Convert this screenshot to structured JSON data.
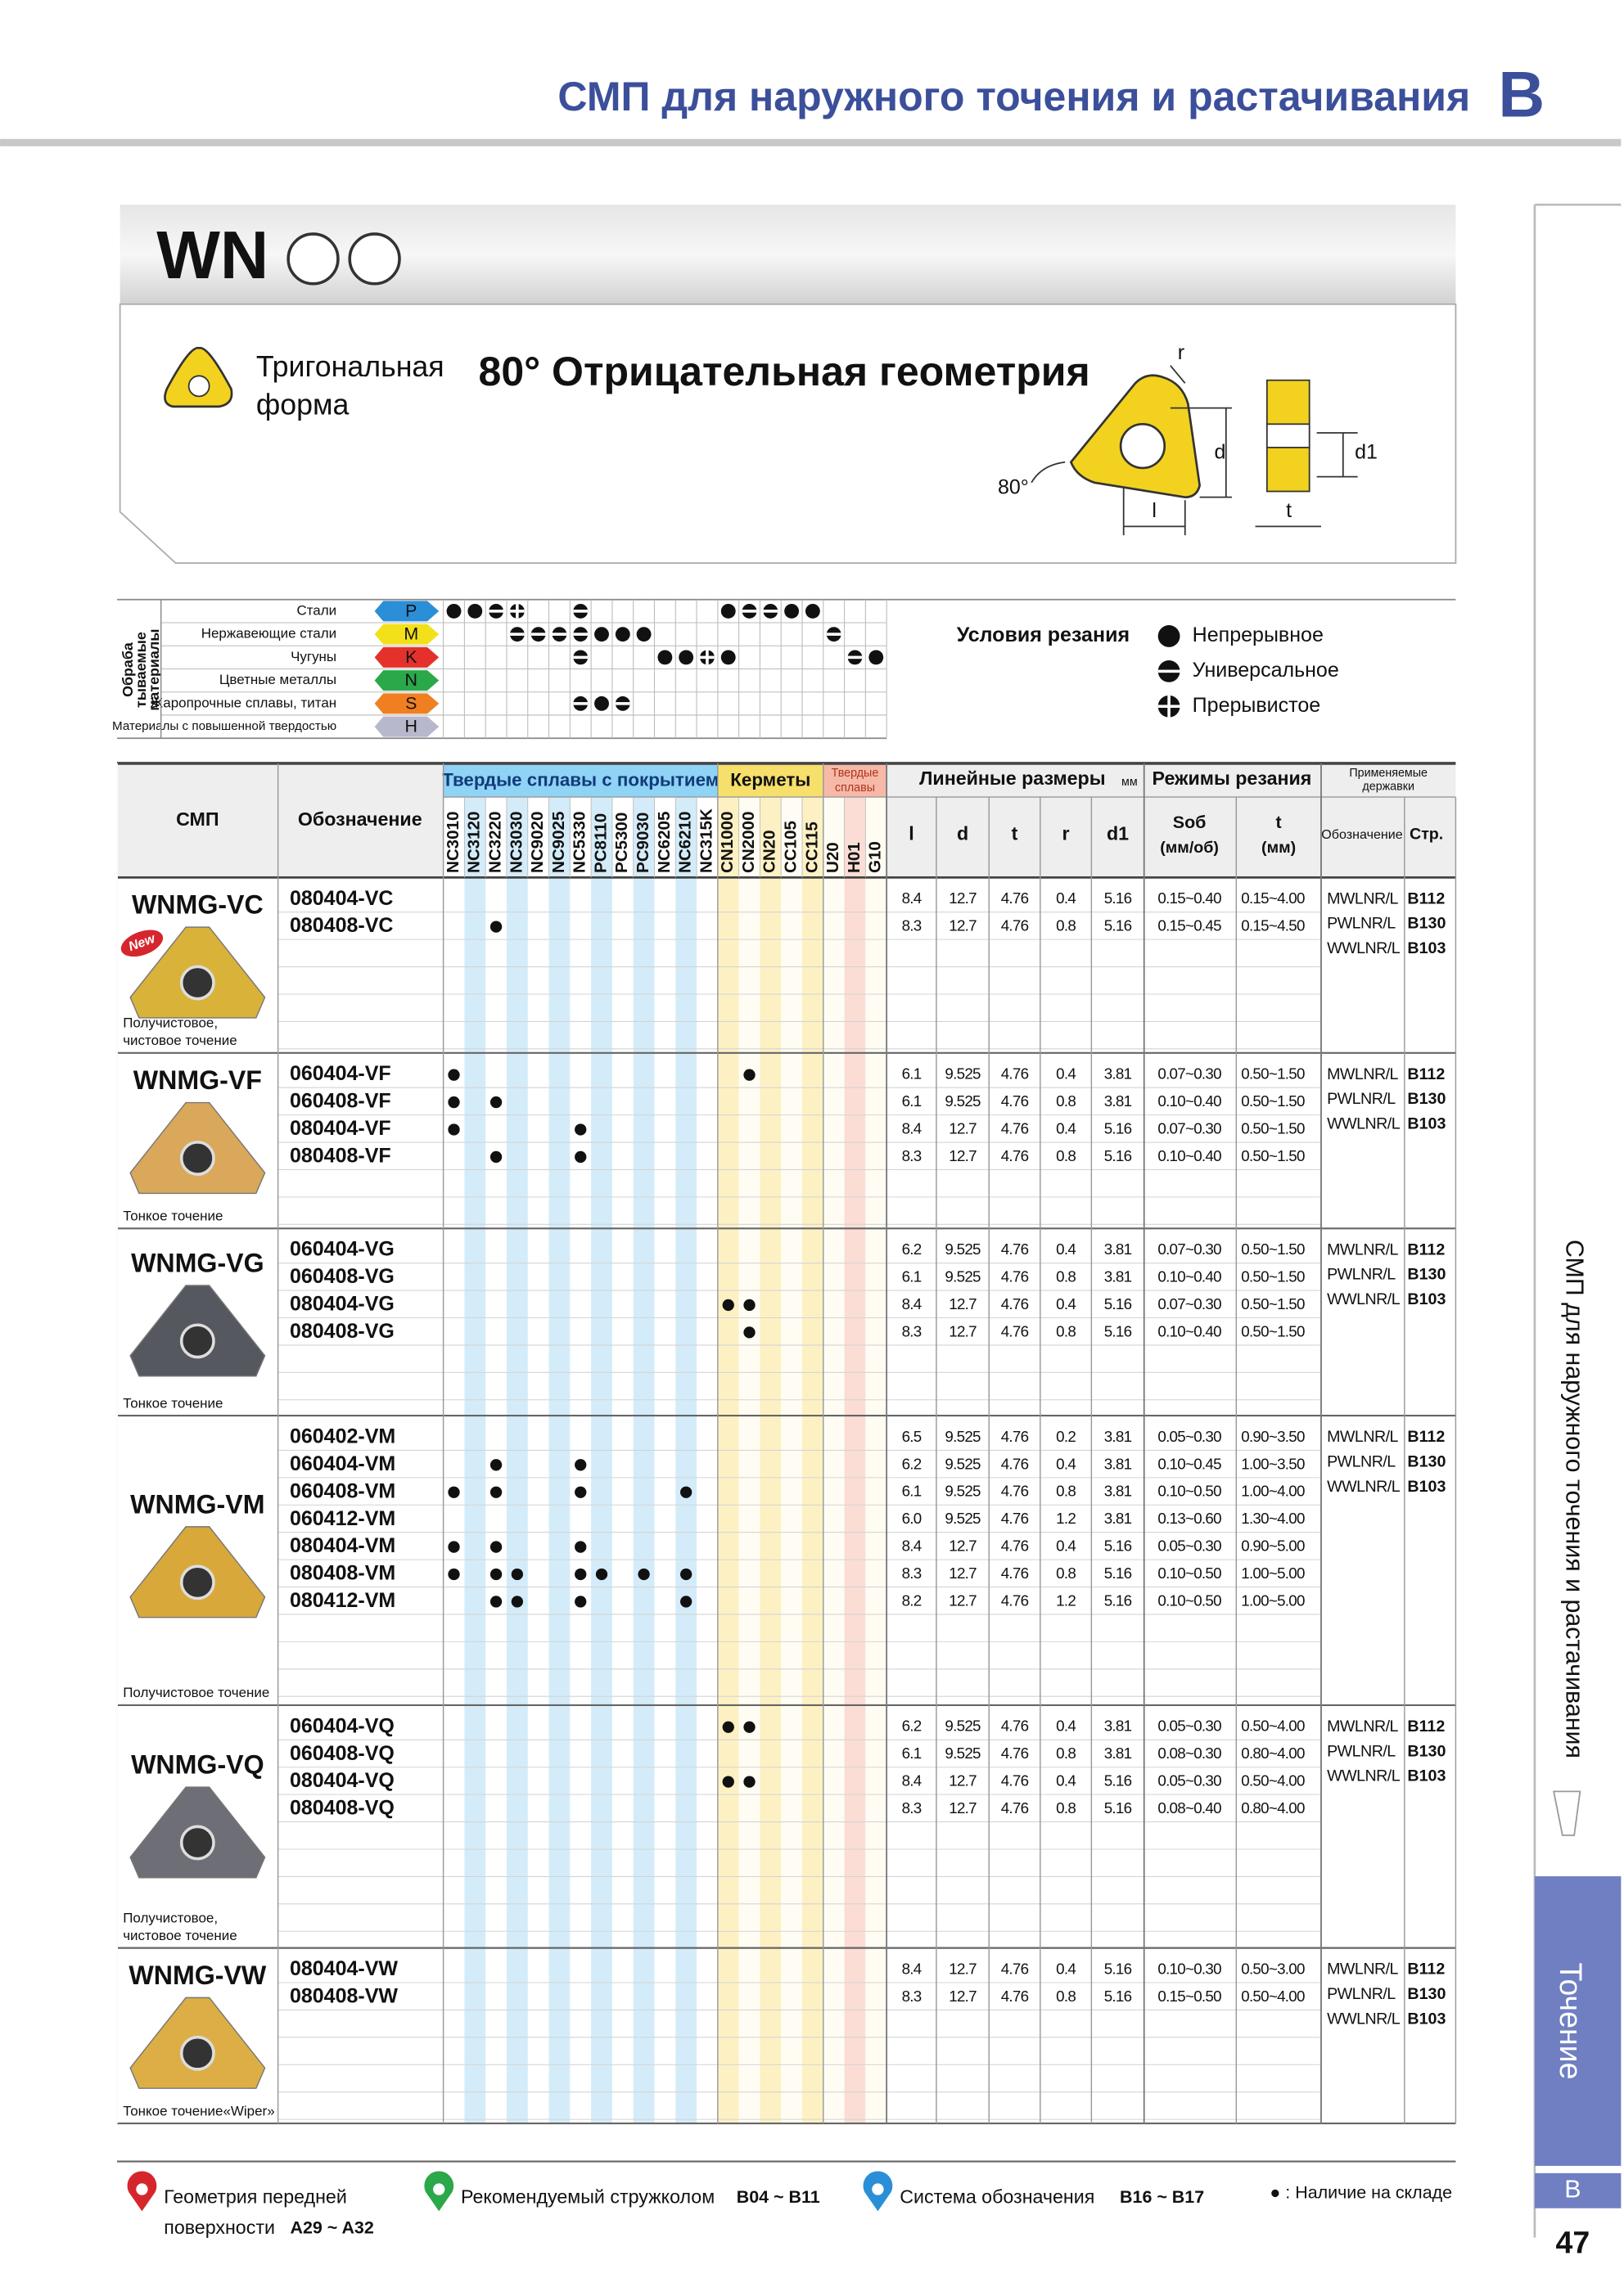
{
  "header": {
    "title": "СМП для наружного точения и растачивания",
    "letter": "B"
  },
  "product": {
    "code": "WN",
    "shape": [
      "Тригональная",
      "форма"
    ],
    "geometry": "80° Отрицательная геометрия",
    "diagram": {
      "r": "r",
      "d": "d",
      "d1": "d1",
      "angle": "80°",
      "l": "l",
      "t": "t"
    }
  },
  "materials": {
    "heading": [
      "Обраба",
      "тываемые",
      "материалы"
    ],
    "rows": [
      {
        "name": "Стали",
        "letter": "P",
        "color": "#2a8fd6"
      },
      {
        "name": "Нержавеющие стали",
        "letter": "M",
        "color": "#f2e01a"
      },
      {
        "name": "Чугуны",
        "letter": "K",
        "color": "#e4312b"
      },
      {
        "name": "Цветные металлы",
        "letter": "N",
        "color": "#2aa84a"
      },
      {
        "name": "Жаропрочные сплавы, титан",
        "letter": "S",
        "color": "#f07f22"
      },
      {
        "name": "Материалы с повышенной твердостью",
        "letter": "H",
        "color": "#b8b8cc"
      }
    ],
    "marks": [
      [
        [
          "NC3010",
          "c"
        ],
        [
          "NC3120",
          "c"
        ],
        [
          "NC3220",
          "u"
        ],
        [
          "NC3030",
          "i"
        ],
        [
          "NC5330",
          "u"
        ],
        [
          "CN1000",
          "c"
        ],
        [
          "CN2000",
          "u"
        ],
        [
          "CN20",
          "u"
        ],
        [
          "CC105",
          "c"
        ],
        [
          "CC115",
          "c"
        ]
      ],
      [
        [
          "NC3030",
          "u"
        ],
        [
          "NC9020",
          "u"
        ],
        [
          "NC9025",
          "u"
        ],
        [
          "NC5330",
          "u"
        ],
        [
          "PC8110",
          "c"
        ],
        [
          "PC5300",
          "c"
        ],
        [
          "PC9030",
          "c"
        ],
        [
          "U20",
          "u"
        ]
      ],
      [
        [
          "NC5330",
          "u"
        ],
        [
          "NC6205",
          "c"
        ],
        [
          "NC6210",
          "c"
        ],
        [
          "NC315K",
          "i"
        ],
        [
          "CN1000",
          "c"
        ],
        [
          "H01",
          "u"
        ],
        [
          "G10",
          "c"
        ]
      ],
      [],
      [
        [
          "NC5330",
          "u"
        ],
        [
          "PC8110",
          "c"
        ],
        [
          "PC5300",
          "u"
        ]
      ],
      []
    ]
  },
  "conditions": {
    "title": "Условия резания",
    "items": [
      "Непрерывное",
      "Универсальное",
      "Прерывистое"
    ]
  },
  "table": {
    "head": {
      "insert": "СМП",
      "designation": "Обозначение",
      "coated": "Твердые сплавы с покрытием",
      "cermets": "Керметы",
      "carbide": [
        "Твердые",
        "сплавы"
      ],
      "linear": "Линейные размеры",
      "unit": "мм",
      "modes": "Режимы резания",
      "holders": [
        "Применяемые",
        "державки"
      ],
      "dims": [
        "l",
        "d",
        "t",
        "r",
        "d1"
      ],
      "feed": [
        "Sоб",
        "(мм/об)"
      ],
      "depth": [
        "t",
        "(мм)"
      ],
      "holder_code": "Обозначение",
      "holder_page": "Стр."
    },
    "grades": [
      "NC3010",
      "NC3120",
      "NC3220",
      "NC3030",
      "NC9020",
      "NC9025",
      "NC5330",
      "PC8110",
      "PC5300",
      "PC9030",
      "NC6205",
      "NC6210",
      "NC315K",
      "CN1000",
      "CN2000",
      "CN20",
      "CC105",
      "CC115",
      "U20",
      "H01",
      "G10"
    ],
    "groups": [
      {
        "name": "WNMG-VC",
        "badge": "New",
        "note": [
          "Получистовое,",
          "чистовое точение"
        ],
        "color": "#d9b23a",
        "items": [
          {
            "code": "080404-VC",
            "grades": [],
            "dims": [
              "8.4",
              "12.7",
              "4.76",
              "0.4",
              "5.16"
            ],
            "feed": "0.15~0.40",
            "depth": "0.15~4.00"
          },
          {
            "code": "080408-VC",
            "grades": [
              "NC3220"
            ],
            "dims": [
              "8.3",
              "12.7",
              "4.76",
              "0.8",
              "5.16"
            ],
            "feed": "0.15~0.45",
            "depth": "0.15~4.50"
          }
        ],
        "holders": [
          [
            "MWLNR/L",
            "B112"
          ],
          [
            "PWLNR/L",
            "B130"
          ],
          [
            "WWLNR/L",
            "B103"
          ]
        ]
      },
      {
        "name": "WNMG-VF",
        "note": [
          "Тонкое точение"
        ],
        "color": "#d9a85a",
        "items": [
          {
            "code": "060404-VF",
            "grades": [
              "NC3010",
              "CN2000"
            ],
            "dims": [
              "6.1",
              "9.525",
              "4.76",
              "0.4",
              "3.81"
            ],
            "feed": "0.07~0.30",
            "depth": "0.50~1.50"
          },
          {
            "code": "060408-VF",
            "grades": [
              "NC3010",
              "NC3220"
            ],
            "dims": [
              "6.1",
              "9.525",
              "4.76",
              "0.8",
              "3.81"
            ],
            "feed": "0.10~0.40",
            "depth": "0.50~1.50"
          },
          {
            "code": "080404-VF",
            "grades": [
              "NC3010",
              "NC5330"
            ],
            "dims": [
              "8.4",
              "12.7",
              "4.76",
              "0.4",
              "5.16"
            ],
            "feed": "0.07~0.30",
            "depth": "0.50~1.50"
          },
          {
            "code": "080408-VF",
            "grades": [
              "NC3220",
              "NC5330"
            ],
            "dims": [
              "8.3",
              "12.7",
              "4.76",
              "0.8",
              "5.16"
            ],
            "feed": "0.10~0.40",
            "depth": "0.50~1.50"
          }
        ],
        "holders": [
          [
            "MWLNR/L",
            "B112"
          ],
          [
            "PWLNR/L",
            "B130"
          ],
          [
            "WWLNR/L",
            "B103"
          ]
        ]
      },
      {
        "name": "WNMG-VG",
        "note": [
          "Тонкое точение"
        ],
        "color": "#55585f",
        "items": [
          {
            "code": "060404-VG",
            "grades": [],
            "dims": [
              "6.2",
              "9.525",
              "4.76",
              "0.4",
              "3.81"
            ],
            "feed": "0.07~0.30",
            "depth": "0.50~1.50"
          },
          {
            "code": "060408-VG",
            "grades": [],
            "dims": [
              "6.1",
              "9.525",
              "4.76",
              "0.8",
              "3.81"
            ],
            "feed": "0.10~0.40",
            "depth": "0.50~1.50"
          },
          {
            "code": "080404-VG",
            "grades": [
              "CN1000",
              "CN2000"
            ],
            "dims": [
              "8.4",
              "12.7",
              "4.76",
              "0.4",
              "5.16"
            ],
            "feed": "0.07~0.30",
            "depth": "0.50~1.50"
          },
          {
            "code": "080408-VG",
            "grades": [
              "CN2000"
            ],
            "dims": [
              "8.3",
              "12.7",
              "4.76",
              "0.8",
              "5.16"
            ],
            "feed": "0.10~0.40",
            "depth": "0.50~1.50"
          }
        ],
        "holders": [
          [
            "MWLNR/L",
            "B112"
          ],
          [
            "PWLNR/L",
            "B130"
          ],
          [
            "WWLNR/L",
            "B103"
          ]
        ]
      },
      {
        "name": "WNMG-VM",
        "note": [
          "Получистовое точение"
        ],
        "color": "#d9a83a",
        "items": [
          {
            "code": "060402-VM",
            "grades": [],
            "dims": [
              "6.5",
              "9.525",
              "4.76",
              "0.2",
              "3.81"
            ],
            "feed": "0.05~0.30",
            "depth": "0.90~3.50"
          },
          {
            "code": "060404-VM",
            "grades": [
              "NC3220",
              "NC5330"
            ],
            "dims": [
              "6.2",
              "9.525",
              "4.76",
              "0.4",
              "3.81"
            ],
            "feed": "0.10~0.45",
            "depth": "1.00~3.50"
          },
          {
            "code": "060408-VM",
            "grades": [
              "NC3010",
              "NC3220",
              "NC5330",
              "NC6210"
            ],
            "dims": [
              "6.1",
              "9.525",
              "4.76",
              "0.8",
              "3.81"
            ],
            "feed": "0.10~0.50",
            "depth": "1.00~4.00"
          },
          {
            "code": "060412-VM",
            "grades": [],
            "dims": [
              "6.0",
              "9.525",
              "4.76",
              "1.2",
              "3.81"
            ],
            "feed": "0.13~0.60",
            "depth": "1.30~4.00"
          },
          {
            "code": "080404-VM",
            "grades": [
              "NC3010",
              "NC3220",
              "NC5330"
            ],
            "dims": [
              "8.4",
              "12.7",
              "4.76",
              "0.4",
              "5.16"
            ],
            "feed": "0.05~0.30",
            "depth": "0.90~5.00"
          },
          {
            "code": "080408-VM",
            "grades": [
              "NC3010",
              "NC3220",
              "NC3030",
              "NC5330",
              "PC8110",
              "PC9030",
              "NC6210"
            ],
            "dims": [
              "8.3",
              "12.7",
              "4.76",
              "0.8",
              "5.16"
            ],
            "feed": "0.10~0.50",
            "depth": "1.00~5.00"
          },
          {
            "code": "080412-VM",
            "grades": [
              "NC3220",
              "NC3030",
              "NC5330",
              "NC6210"
            ],
            "dims": [
              "8.2",
              "12.7",
              "4.76",
              "1.2",
              "5.16"
            ],
            "feed": "0.10~0.50",
            "depth": "1.00~5.00"
          }
        ],
        "holders": [
          [
            "MWLNR/L",
            "B112"
          ],
          [
            "PWLNR/L",
            "B130"
          ],
          [
            "WWLNR/L",
            "B103"
          ]
        ]
      },
      {
        "name": "WNMG-VQ",
        "note": [
          "Получистовое,",
          "чистовое точение"
        ],
        "color": "#6e6e76",
        "items": [
          {
            "code": "060404-VQ",
            "grades": [
              "CN1000",
              "CN2000"
            ],
            "dims": [
              "6.2",
              "9.525",
              "4.76",
              "0.4",
              "3.81"
            ],
            "feed": "0.05~0.30",
            "depth": "0.50~4.00"
          },
          {
            "code": "060408-VQ",
            "grades": [],
            "dims": [
              "6.1",
              "9.525",
              "4.76",
              "0.8",
              "3.81"
            ],
            "feed": "0.08~0.30",
            "depth": "0.80~4.00"
          },
          {
            "code": "080404-VQ",
            "grades": [
              "CN1000",
              "CN2000"
            ],
            "dims": [
              "8.4",
              "12.7",
              "4.76",
              "0.4",
              "5.16"
            ],
            "feed": "0.05~0.30",
            "depth": "0.50~4.00"
          },
          {
            "code": "080408-VQ",
            "grades": [],
            "dims": [
              "8.3",
              "12.7",
              "4.76",
              "0.8",
              "5.16"
            ],
            "feed": "0.08~0.40",
            "depth": "0.80~4.00"
          }
        ],
        "holders": [
          [
            "MWLNR/L",
            "B112"
          ],
          [
            "PWLNR/L",
            "B130"
          ],
          [
            "WWLNR/L",
            "B103"
          ]
        ]
      },
      {
        "name": "WNMG-VW",
        "note": [
          "Тонкое точение«Wiper»"
        ],
        "color": "#dcae45",
        "items": [
          {
            "code": "080404-VW",
            "grades": [],
            "dims": [
              "8.4",
              "12.7",
              "4.76",
              "0.4",
              "5.16"
            ],
            "feed": "0.10~0.30",
            "depth": "0.50~3.00"
          },
          {
            "code": "080408-VW",
            "grades": [],
            "dims": [
              "8.3",
              "12.7",
              "4.76",
              "0.8",
              "5.16"
            ],
            "feed": "0.15~0.50",
            "depth": "0.50~4.00"
          }
        ],
        "holders": [
          [
            "MWLNR/L",
            "B112"
          ],
          [
            "PWLNR/L",
            "B130"
          ],
          [
            "WWLNR/L",
            "B103"
          ]
        ]
      }
    ]
  },
  "footer": {
    "links": [
      {
        "text": [
          "Геометрия передней",
          "поверхности"
        ],
        "pages": "A29 ~ A32",
        "color": "#d6262d"
      },
      {
        "text": [
          "Рекомендуемый стружколом"
        ],
        "pages": "B04 ~ B11",
        "color": "#2aa84a"
      },
      {
        "text": [
          "Система обозначения"
        ],
        "pages": "B16 ~ B17",
        "color": "#2a8fd6"
      }
    ],
    "stock": "● : Наличие на складе"
  },
  "side": {
    "title": "СМП для наружного точения и растачивания",
    "section": "Точение",
    "letter": "B",
    "page": "47"
  }
}
